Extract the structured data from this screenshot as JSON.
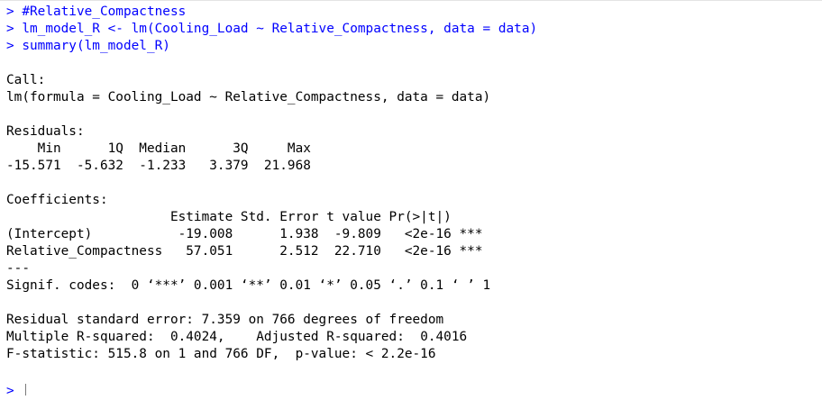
{
  "input_lines": [
    {
      "prompt": "> ",
      "code": "#Relative_Compactness"
    },
    {
      "prompt": "> ",
      "code": "lm_model_R <- lm(Cooling_Load ~ Relative_Compactness, data = data)"
    },
    {
      "prompt": "> ",
      "code": "summary(lm_model_R)"
    }
  ],
  "output": {
    "call_header": "Call:",
    "call_text": "lm(formula = Cooling_Load ~ Relative_Compactness, data = data)",
    "residuals_header": "Residuals:",
    "residuals_labels": "    Min      1Q  Median      3Q     Max ",
    "residuals_values": "-15.571  -5.632  -1.233   3.379  21.968 ",
    "coefficients_header": "Coefficients:",
    "coef_col_header": "                     Estimate Std. Error t value Pr(>|t|)    ",
    "coef_row_1": "(Intercept)           -19.008      1.938  -9.809   <2e-16 ***",
    "coef_row_2": "Relative_Compactness   57.051      2.512  22.710   <2e-16 ***",
    "separator": "---",
    "signif_codes": "Signif. codes:  0 ‘***’ 0.001 ‘**’ 0.01 ‘*’ 0.05 ‘.’ 0.1 ‘ ’ 1",
    "rse": "Residual standard error: 7.359 on 766 degrees of freedom",
    "r_squared": "Multiple R-squared:  0.4024,\tAdjusted R-squared:  0.4016 ",
    "f_stat": "F-statistic: 515.8 on 1 and 766 DF,  p-value: < 2.2e-16"
  },
  "final_prompt": "> "
}
